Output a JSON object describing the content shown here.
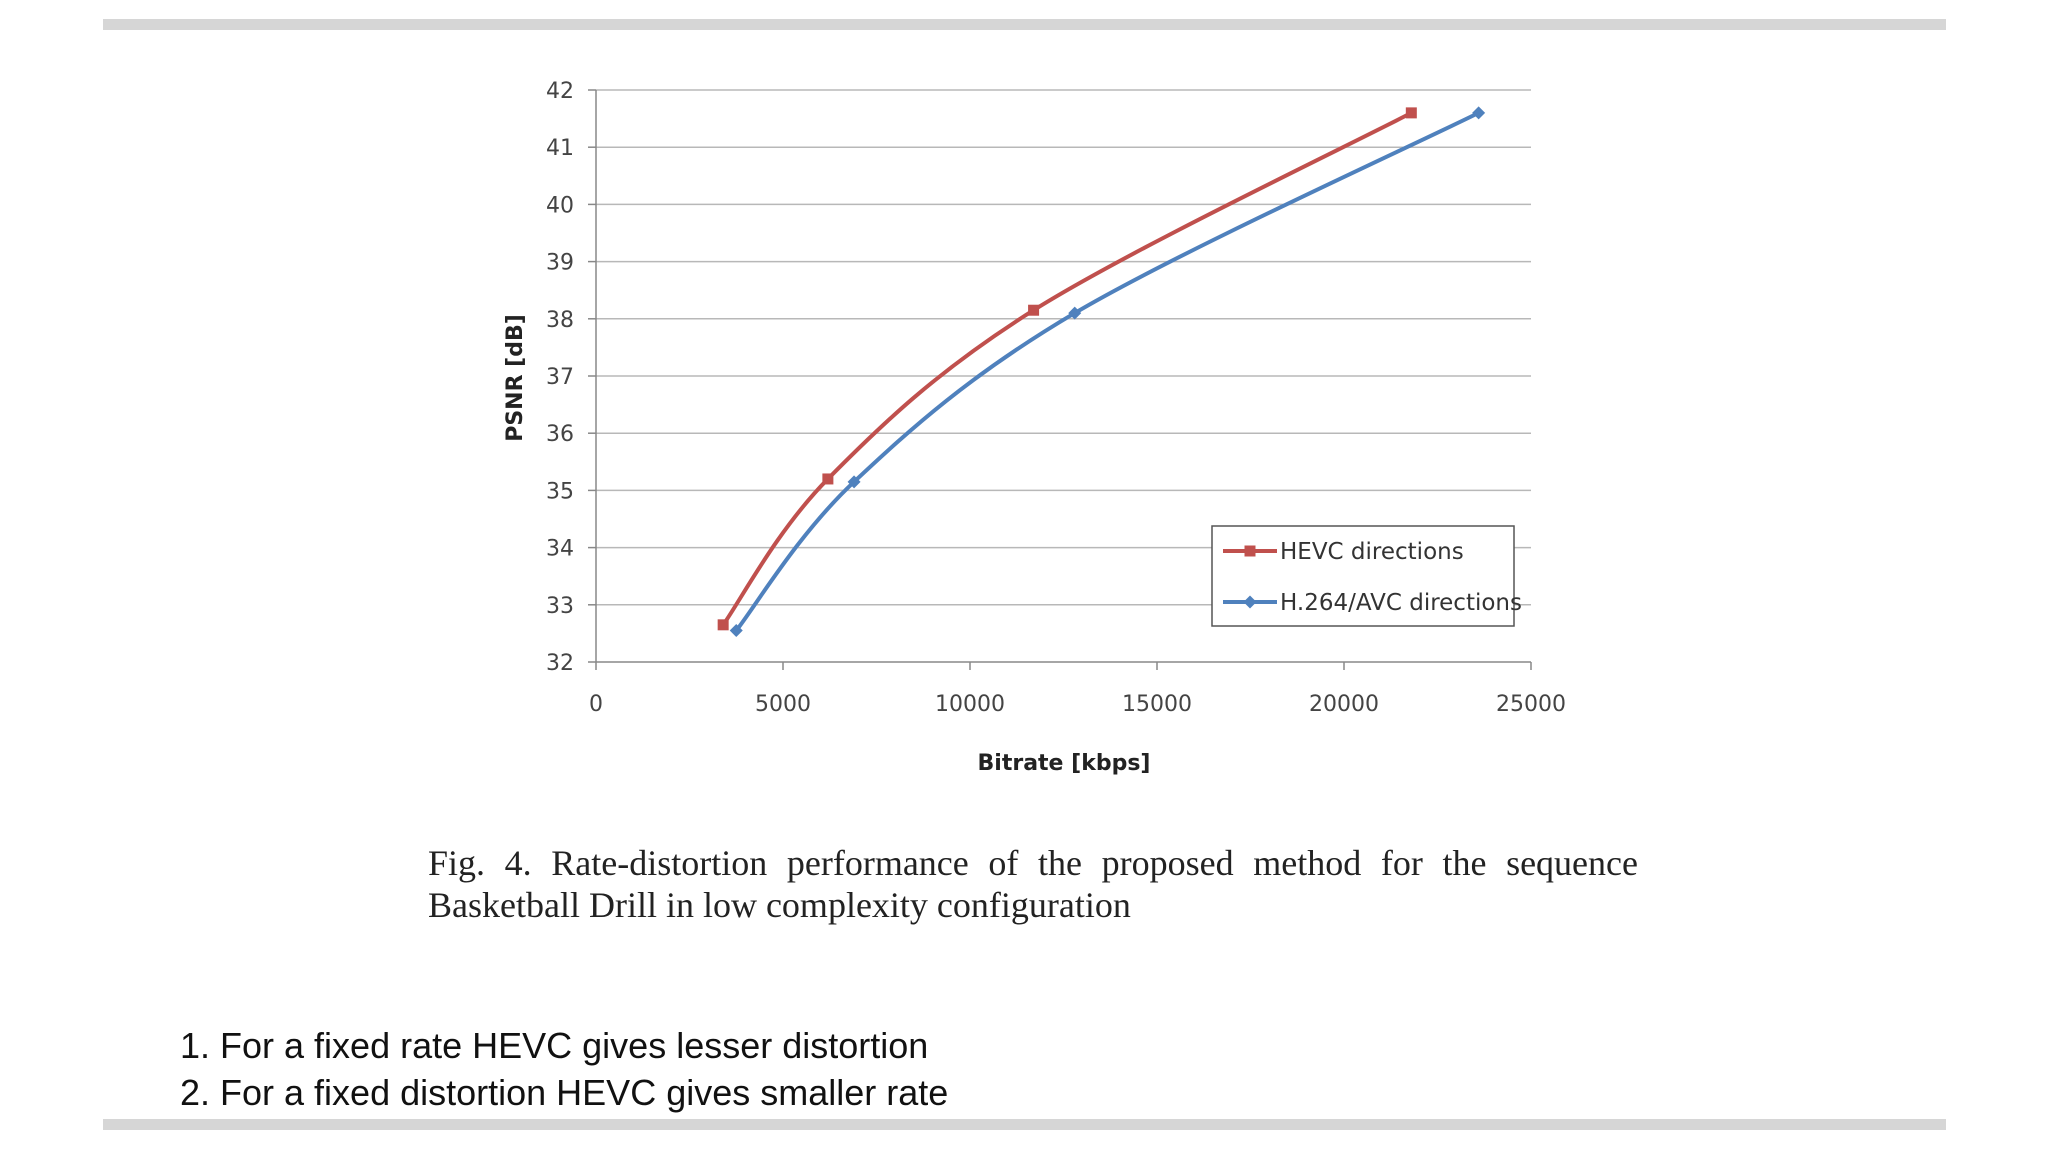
{
  "chart_data": {
    "type": "line",
    "xlabel": "Bitrate [kbps]",
    "ylabel": "PSNR [dB]",
    "xlim": [
      0,
      25000
    ],
    "ylim": [
      32,
      42
    ],
    "xticks": [
      "0",
      "5000",
      "10000",
      "15000",
      "20000",
      "25000"
    ],
    "yticks": [
      "32",
      "33",
      "34",
      "35",
      "36",
      "37",
      "38",
      "39",
      "40",
      "41",
      "42"
    ],
    "grid": "horizontal",
    "legend_position": "bottom-right",
    "series": [
      {
        "name": "HEVC directions",
        "color": "#c0504d",
        "marker": "square",
        "points": [
          [
            3400,
            32.65
          ],
          [
            6200,
            35.2
          ],
          [
            11700,
            38.15
          ],
          [
            21800,
            41.6
          ]
        ]
      },
      {
        "name": "H.264/AVC directions",
        "color": "#4f81bd",
        "marker": "diamond",
        "points": [
          [
            3750,
            32.55
          ],
          [
            6900,
            35.15
          ],
          [
            12800,
            38.1
          ],
          [
            23600,
            41.6
          ]
        ]
      }
    ]
  },
  "caption": "Fig. 4. Rate-distortion performance of the proposed method for the sequence Basketball Drill in low complexity configuration",
  "notes": [
    "1. For a fixed rate HEVC gives lesser distortion",
    "2. For a fixed distortion HEVC gives smaller rate"
  ]
}
